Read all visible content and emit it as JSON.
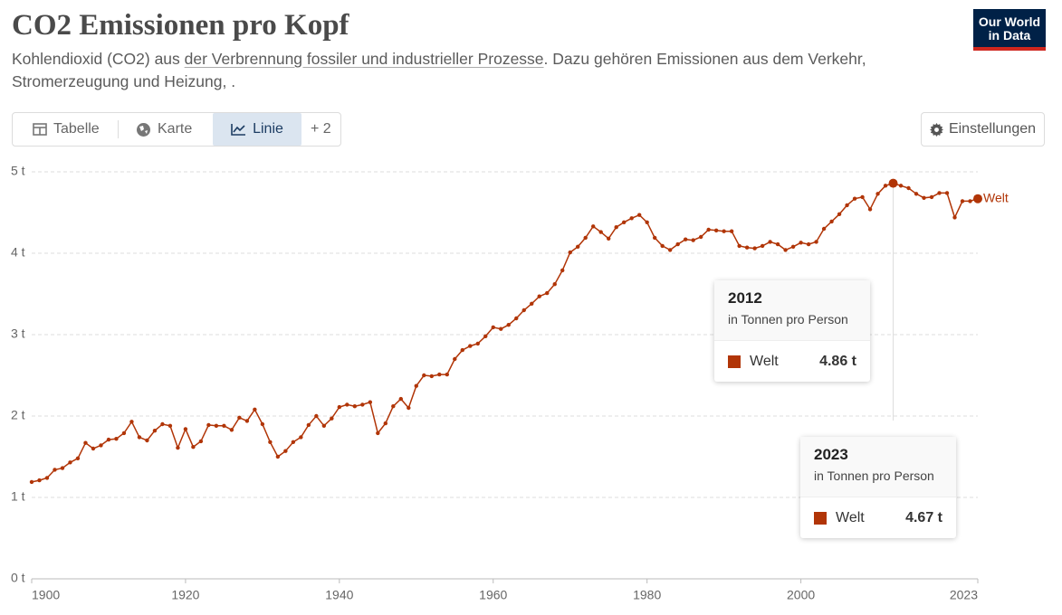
{
  "header": {
    "title": "CO2 Emissionen pro Kopf",
    "subtitle": {
      "before": "Kohlendioxid (CO2) aus ",
      "link": "der Verbrennung fossiler und industrieller Prozesse",
      "after": ". Dazu gehören Emissionen aus dem Verkehr,",
      "line2": "Stromerzeugung und Heizung, ."
    }
  },
  "logo": {
    "line1": "Our World",
    "line2": "in Data"
  },
  "tabs": [
    "Tabelle",
    "Karte",
    "Linie",
    "+ 2"
  ],
  "settings": "Einstellungen",
  "chart_data": {
    "type": "line",
    "x": [
      1900,
      1901,
      1902,
      1903,
      1904,
      1905,
      1906,
      1907,
      1908,
      1909,
      1910,
      1911,
      1912,
      1913,
      1914,
      1915,
      1916,
      1917,
      1918,
      1919,
      1920,
      1921,
      1922,
      1923,
      1924,
      1925,
      1926,
      1927,
      1928,
      1929,
      1930,
      1931,
      1932,
      1933,
      1934,
      1935,
      1936,
      1937,
      1938,
      1939,
      1940,
      1941,
      1942,
      1943,
      1944,
      1945,
      1946,
      1947,
      1948,
      1949,
      1950,
      1951,
      1952,
      1953,
      1954,
      1955,
      1956,
      1957,
      1958,
      1959,
      1960,
      1961,
      1962,
      1963,
      1964,
      1965,
      1966,
      1967,
      1968,
      1969,
      1970,
      1971,
      1972,
      1973,
      1974,
      1975,
      1976,
      1977,
      1978,
      1979,
      1980,
      1981,
      1982,
      1983,
      1984,
      1985,
      1986,
      1987,
      1988,
      1989,
      1990,
      1991,
      1992,
      1993,
      1994,
      1995,
      1996,
      1997,
      1998,
      1999,
      2000,
      2001,
      2002,
      2003,
      2004,
      2005,
      2006,
      2007,
      2008,
      2009,
      2010,
      2011,
      2012,
      2013,
      2014,
      2015,
      2016,
      2017,
      2018,
      2019,
      2020,
      2021,
      2022,
      2023
    ],
    "series": [
      {
        "name": "Welt",
        "color": "#b13507",
        "values": [
          1.19,
          1.21,
          1.24,
          1.34,
          1.36,
          1.43,
          1.48,
          1.67,
          1.6,
          1.64,
          1.71,
          1.72,
          1.79,
          1.93,
          1.74,
          1.7,
          1.82,
          1.9,
          1.88,
          1.61,
          1.84,
          1.62,
          1.69,
          1.89,
          1.88,
          1.88,
          1.83,
          1.98,
          1.94,
          2.08,
          1.9,
          1.68,
          1.5,
          1.57,
          1.68,
          1.74,
          1.89,
          2.0,
          1.88,
          1.97,
          2.11,
          2.14,
          2.12,
          2.14,
          2.17,
          1.79,
          1.91,
          2.12,
          2.21,
          2.1,
          2.37,
          2.5,
          2.49,
          2.51,
          2.51,
          2.7,
          2.81,
          2.86,
          2.89,
          2.98,
          3.09,
          3.07,
          3.12,
          3.2,
          3.3,
          3.38,
          3.47,
          3.51,
          3.62,
          3.79,
          4.01,
          4.08,
          4.19,
          4.33,
          4.26,
          4.18,
          4.32,
          4.38,
          4.43,
          4.47,
          4.38,
          4.19,
          4.09,
          4.04,
          4.11,
          4.17,
          4.16,
          4.2,
          4.29,
          4.28,
          4.27,
          4.27,
          4.09,
          4.07,
          4.06,
          4.09,
          4.14,
          4.11,
          4.04,
          4.08,
          4.13,
          4.11,
          4.14,
          4.3,
          4.39,
          4.48,
          4.59,
          4.67,
          4.69,
          4.54,
          4.73,
          4.83,
          4.86,
          4.83,
          4.8,
          4.73,
          4.68,
          4.69,
          4.74,
          4.74,
          4.44,
          4.64,
          4.64,
          4.67
        ]
      }
    ],
    "xlim": [
      1900,
      2023
    ],
    "xticks": [
      1900,
      1920,
      1940,
      1960,
      1980,
      2000,
      2023
    ],
    "ylim": [
      0,
      5
    ],
    "yticks": [
      {
        "value": 0,
        "label": "0 t"
      },
      {
        "value": 1,
        "label": "1 t"
      },
      {
        "value": 2,
        "label": "2 t"
      },
      {
        "value": 3,
        "label": "3 t"
      },
      {
        "value": 4,
        "label": "4 t"
      },
      {
        "value": 5,
        "label": "5 t"
      }
    ],
    "grid": true,
    "tooltips": [
      {
        "x": 2012,
        "unit": "in Tonnen pro Person",
        "value_label": "4.86 t"
      },
      {
        "x": 2023,
        "unit": "in Tonnen pro Person",
        "value_label": "4.67 t"
      }
    ]
  }
}
